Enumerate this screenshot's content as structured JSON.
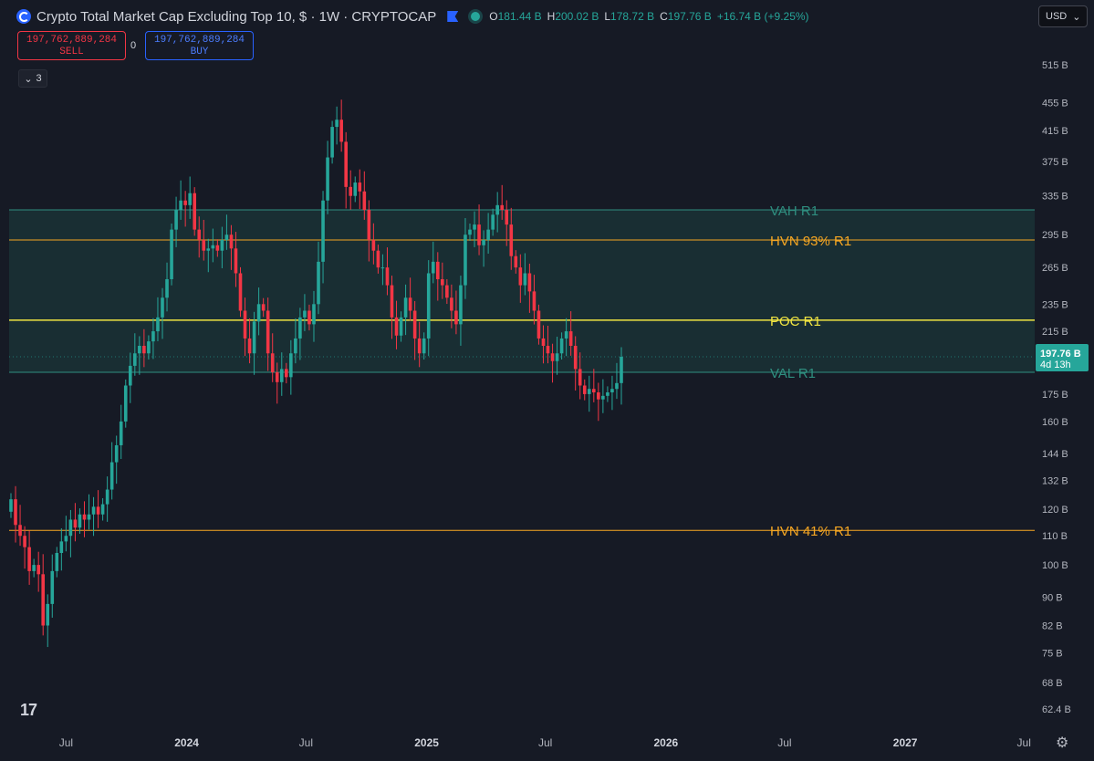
{
  "header": {
    "title": "Crypto Total Market Cap Excluding Top 10, $ · 1W · CRYPTOCAP",
    "o_label": "O",
    "o_value": "181.44 B",
    "h_label": "H",
    "h_value": "200.02 B",
    "l_label": "L",
    "l_value": "178.72 B",
    "c_label": "C",
    "c_value": "197.76 B",
    "change": "+16.74 B (+9.25%)"
  },
  "trade": {
    "sell_price": "197,762,889,284",
    "sell_label": "SELL",
    "spread": "0",
    "buy_price": "197,762,889,284",
    "buy_label": "BUY"
  },
  "indicators": {
    "count": "3"
  },
  "currency": "USD",
  "colors": {
    "up": "#26a69a",
    "down": "#f23645",
    "poc": "#f0e442",
    "hvn": "#f5a623",
    "value_area": "#1c3838",
    "background": "#161a25"
  },
  "chart_data": {
    "type": "candlestick",
    "scale": "log",
    "ylim": [
      60,
      540
    ],
    "y_ticks": [
      {
        "label": "515 B",
        "v": 515
      },
      {
        "label": "455 B",
        "v": 455
      },
      {
        "label": "415 B",
        "v": 415
      },
      {
        "label": "375 B",
        "v": 375
      },
      {
        "label": "335 B",
        "v": 335
      },
      {
        "label": "295 B",
        "v": 295
      },
      {
        "label": "265 B",
        "v": 265
      },
      {
        "label": "235 B",
        "v": 235
      },
      {
        "label": "215 B",
        "v": 215
      },
      {
        "label": "175 B",
        "v": 175
      },
      {
        "label": "160 B",
        "v": 160
      },
      {
        "label": "144 B",
        "v": 144
      },
      {
        "label": "132 B",
        "v": 132
      },
      {
        "label": "120 B",
        "v": 120
      },
      {
        "label": "110 B",
        "v": 110
      },
      {
        "label": "100 B",
        "v": 100
      },
      {
        "label": "90 B",
        "v": 90
      },
      {
        "label": "82 B",
        "v": 82
      },
      {
        "label": "75 B",
        "v": 75
      },
      {
        "label": "68 B",
        "v": 68
      },
      {
        "label": "62.4 B",
        "v": 62.4
      }
    ],
    "x_ticks": [
      {
        "label": "Jul",
        "d": "2023-07-01",
        "bold": false
      },
      {
        "label": "2024",
        "d": "2024-01-01",
        "bold": true
      },
      {
        "label": "Jul",
        "d": "2024-07-01",
        "bold": false
      },
      {
        "label": "2025",
        "d": "2025-01-01",
        "bold": true
      },
      {
        "label": "Jul",
        "d": "2025-07-01",
        "bold": false
      },
      {
        "label": "2026",
        "d": "2026-01-01",
        "bold": true
      },
      {
        "label": "Jul",
        "d": "2026-07-01",
        "bold": false
      },
      {
        "label": "2027",
        "d": "2027-01-01",
        "bold": true
      },
      {
        "label": "Jul",
        "d": "2027-07-01",
        "bold": false
      }
    ],
    "last_price": {
      "value": 197.76,
      "label": "197.76 B",
      "countdown": "4d 13h"
    },
    "levels": [
      {
        "name": "VAH R1",
        "value": 320,
        "color": "#2f8f80"
      },
      {
        "name": "HVN 93% R1",
        "value": 290,
        "color": "#f5a623"
      },
      {
        "name": "POC R1",
        "value": 223,
        "color": "#f0e442"
      },
      {
        "name": "VAL R1",
        "value": 188,
        "color": "#2f8f80"
      },
      {
        "name": "HVN 41% R1",
        "value": 112,
        "color": "#f5a623"
      }
    ],
    "value_area": {
      "top": 320,
      "bottom": 188
    },
    "weekly_closes": [
      124,
      114,
      110,
      106,
      98,
      100,
      97,
      82,
      88,
      98,
      104,
      108,
      110,
      116,
      113,
      118,
      116,
      118,
      121,
      118,
      122,
      128,
      140,
      148,
      160,
      180,
      192,
      200,
      205,
      200,
      208,
      215,
      225,
      240,
      255,
      300,
      320,
      330,
      325,
      338,
      300,
      290,
      280,
      282,
      285,
      280,
      290,
      295,
      282,
      260,
      230,
      210,
      200,
      222,
      235,
      230,
      200,
      188,
      182,
      190,
      185,
      200,
      210,
      225,
      230,
      220,
      235,
      270,
      330,
      380,
      420,
      430,
      400,
      345,
      335,
      350,
      340,
      320,
      290,
      280,
      265,
      265,
      250,
      225,
      212,
      225,
      240,
      230,
      210,
      200,
      210,
      260,
      270,
      255,
      250,
      240,
      230,
      220,
      250,
      295,
      300,
      305,
      285,
      290,
      300,
      315,
      325,
      320,
      305,
      275,
      265,
      250,
      260,
      245,
      230,
      210,
      205,
      200,
      195,
      200,
      210,
      215,
      205,
      190,
      180,
      175,
      178,
      176,
      172,
      174,
      176,
      178,
      181.44,
      197.76
    ]
  }
}
